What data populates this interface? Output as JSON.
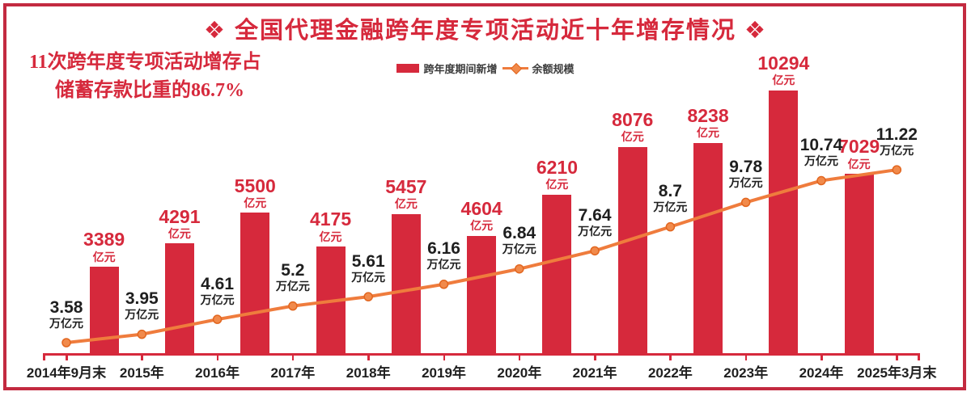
{
  "chart_data": {
    "type": "bar",
    "title": "❖ 全国代理金融跨年度专项活动近十年增存情况 ❖",
    "annotation_lines": [
      "11次跨年度专项活动增存占",
      "储蓄存款比重的86.7%"
    ],
    "x_categories": [
      "2014年9月末",
      "2015年",
      "2016年",
      "2017年",
      "2018年",
      "2019年",
      "2020年",
      "2021年",
      "2022年",
      "2023年",
      "2024年",
      "2025年3月末"
    ],
    "series": [
      {
        "name": "跨年度期间新增",
        "type": "bar",
        "unit": "亿元",
        "color": "#d6293c",
        "placement": "each bar spans the cross-year interval between consecutive x categories",
        "values": [
          3389,
          4291,
          5500,
          4175,
          5457,
          4604,
          6210,
          8076,
          8238,
          10294,
          7029
        ]
      },
      {
        "name": "余额规模",
        "type": "line",
        "unit": "万亿元",
        "color": "#ef7c3d",
        "values": [
          3.58,
          3.95,
          4.61,
          5.2,
          5.61,
          6.16,
          6.84,
          7.64,
          8.7,
          9.78,
          10.74,
          11.22
        ]
      }
    ],
    "legend_position": "top-center",
    "grid": false,
    "value_axis_visible": false
  },
  "colors": {
    "accent_red": "#d6293c",
    "frame_red": "#c32a40",
    "line_orange": "#ef7c3d",
    "marker_fill": "#f18a4b",
    "marker_stroke": "#e2661f",
    "text_black": "#1f1f1f"
  }
}
